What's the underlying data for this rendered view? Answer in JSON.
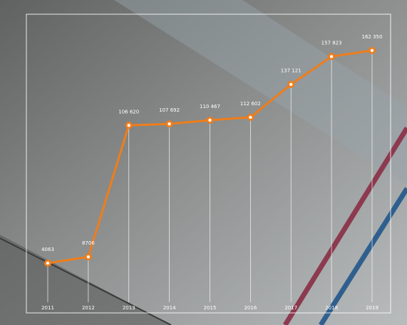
{
  "chart_data": {
    "type": "line",
    "categories": [
      "2011",
      "2012",
      "2013",
      "2014",
      "2015",
      "2016",
      "2017",
      "2018",
      "2019"
    ],
    "values": [
      4063,
      8706,
      106620,
      107692,
      110467,
      112602,
      137121,
      157823,
      162350
    ],
    "value_labels": [
      "4063",
      "8706",
      "106 620",
      "107 692",
      "110 467",
      "112 602",
      "137 121",
      "157 823",
      "162 350"
    ],
    "color": "#f07d1a"
  }
}
